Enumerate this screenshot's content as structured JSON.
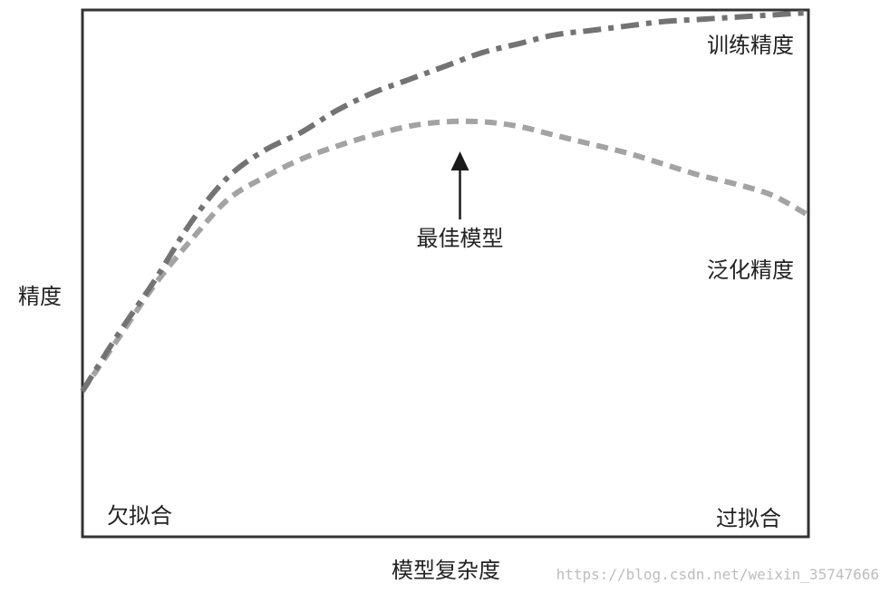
{
  "chart_data": {
    "type": "line",
    "title": "",
    "xlabel": "模型复杂度",
    "ylabel": "精度",
    "x": [
      0,
      5,
      10,
      15,
      20,
      25,
      30,
      35,
      40,
      45,
      50,
      55,
      60,
      65,
      70,
      75,
      80,
      85,
      90,
      95,
      100
    ],
    "xlim": [
      0,
      100
    ],
    "ylim": [
      0,
      100
    ],
    "grid": false,
    "legend": "none",
    "series": [
      {
        "name": "训练精度",
        "line_style": "dash-dot",
        "color": "#737373",
        "values": [
          15,
          28,
          40,
          53,
          63,
          69,
          73,
          78,
          82,
          85,
          88,
          91,
          93,
          95,
          96,
          97,
          98,
          98.5,
          99,
          99.5,
          100
        ]
      },
      {
        "name": "泛化精度",
        "line_style": "dashed",
        "color": "#a3a3a3",
        "values": [
          15,
          27,
          39,
          49,
          58,
          63,
          67,
          70,
          72.5,
          74.5,
          75.5,
          75.5,
          74.5,
          72.5,
          70.5,
          68.5,
          66,
          63.5,
          61.5,
          59,
          54.5
        ]
      }
    ],
    "annotations": {
      "best_model": {
        "text": "最佳模型",
        "x": 52
      },
      "underfit": "欠拟合",
      "overfit": "过拟合"
    }
  },
  "watermark": "https://blog.csdn.net/weixin_35747666"
}
